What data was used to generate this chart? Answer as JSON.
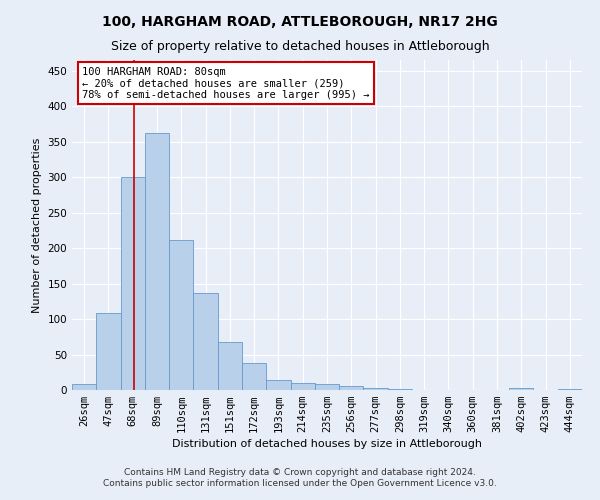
{
  "title": "100, HARGHAM ROAD, ATTLEBOROUGH, NR17 2HG",
  "subtitle": "Size of property relative to detached houses in Attleborough",
  "xlabel": "Distribution of detached houses by size in Attleborough",
  "ylabel": "Number of detached properties",
  "footnote1": "Contains HM Land Registry data © Crown copyright and database right 2024.",
  "footnote2": "Contains public sector information licensed under the Open Government Licence v3.0.",
  "categories": [
    "26sqm",
    "47sqm",
    "68sqm",
    "89sqm",
    "110sqm",
    "131sqm",
    "151sqm",
    "172sqm",
    "193sqm",
    "214sqm",
    "235sqm",
    "256sqm",
    "277sqm",
    "298sqm",
    "319sqm",
    "340sqm",
    "360sqm",
    "381sqm",
    "402sqm",
    "423sqm",
    "444sqm"
  ],
  "values": [
    8,
    108,
    300,
    362,
    212,
    136,
    68,
    38,
    14,
    10,
    9,
    6,
    3,
    2,
    0,
    0,
    0,
    0,
    3,
    0,
    2
  ],
  "bar_color": "#b8d0ea",
  "bar_edge_color": "#6699cc",
  "annotation_line1": "100 HARGHAM ROAD: 80sqm",
  "annotation_line2": "← 20% of detached houses are smaller (259)",
  "annotation_line3": "78% of semi-detached houses are larger (995) →",
  "annotation_box_color": "#ffffff",
  "annotation_box_edge": "#cc0000",
  "vline_color": "#cc0000",
  "ylim": [
    0,
    465
  ],
  "yticks": [
    0,
    50,
    100,
    150,
    200,
    250,
    300,
    350,
    400,
    450
  ],
  "bg_color": "#e8eef8",
  "plot_bg_color": "#e8eef8",
  "grid_color": "#ffffff",
  "title_fontsize": 10,
  "subtitle_fontsize": 9,
  "axis_label_fontsize": 8,
  "tick_fontsize": 7.5,
  "annotation_fontsize": 7.5,
  "footnote_fontsize": 6.5
}
